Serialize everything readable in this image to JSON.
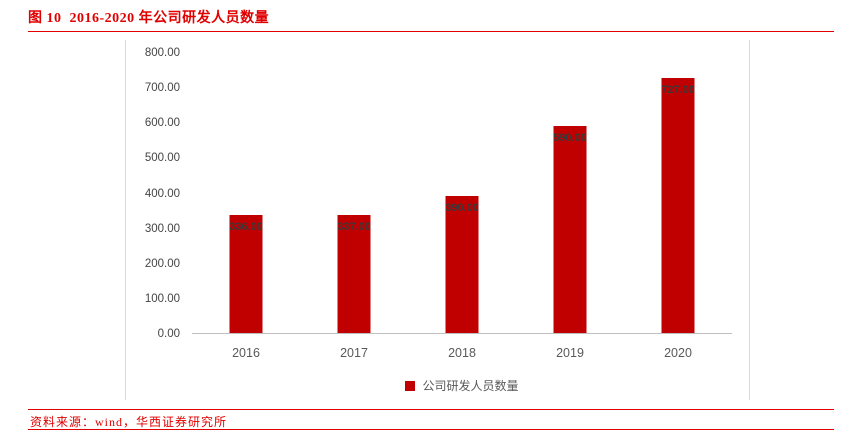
{
  "header": {
    "title": "图 10  2016-2020 年公司研发人员数量"
  },
  "chart_data": {
    "type": "bar",
    "title": "2016-2020 年公司研发人员数量",
    "categories": [
      "2016",
      "2017",
      "2018",
      "2019",
      "2020"
    ],
    "values": [
      336,
      337,
      390,
      590,
      727
    ],
    "value_labels": [
      "336.00",
      "337.00",
      "390.00",
      "590.00",
      "727.00"
    ],
    "xlabel": "",
    "ylabel": "",
    "ylim": [
      0,
      800
    ],
    "ytick_step": 100,
    "ytick_labels": [
      "800.00",
      "700.00",
      "600.00",
      "500.00",
      "400.00",
      "300.00",
      "200.00",
      "100.00",
      "0.00"
    ],
    "grid": false,
    "bar_color": "#c00000",
    "legend_position": "bottom",
    "legend": [
      {
        "label": "公司研发人员数量",
        "color": "#c00000"
      }
    ]
  },
  "footer": {
    "source": "资料来源：wind，华西证券研究所"
  },
  "colors": {
    "accent_red": "#e00000",
    "bar_red": "#c00000",
    "axis_text": "#595959",
    "bar_label_text": "#3a3a3a"
  }
}
